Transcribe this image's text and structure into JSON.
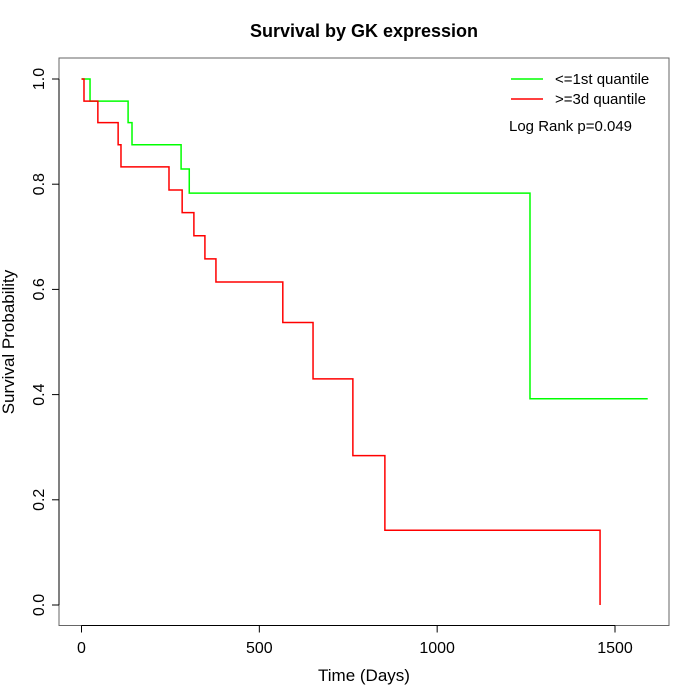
{
  "chart_data": {
    "type": "line",
    "subtype": "kaplan-meier step",
    "title": "Survival by GK expression",
    "xlabel": "Time (Days)",
    "ylabel": "Survival Probability",
    "xlim": [
      0,
      1650
    ],
    "ylim": [
      0,
      1.0
    ],
    "xticks": [
      0,
      500,
      1000,
      1500
    ],
    "xtick_labels": [
      "0",
      "500",
      "1000",
      "1500"
    ],
    "yticks": [
      0.0,
      0.2,
      0.4,
      0.6,
      0.8,
      1.0
    ],
    "ytick_labels": [
      "0.0",
      "0.2",
      "0.4",
      "0.6",
      "0.8",
      "1.0"
    ],
    "grid": false,
    "legend_position": "top-right",
    "annotation": "Log Rank p=0.049",
    "series": [
      {
        "name": "<=1st quantile",
        "color": "#00ff00",
        "x": [
          0,
          24,
          131,
          142,
          280,
          303,
          1261,
          1592
        ],
        "y": [
          1.0,
          0.958,
          0.917,
          0.875,
          0.829,
          0.783,
          0.392,
          0.392
        ]
      },
      {
        "name": ">=3d quantile",
        "color": "#ff0000",
        "x": [
          0,
          7,
          46,
          103,
          111,
          246,
          283,
          316,
          347,
          378,
          566,
          651,
          763,
          853,
          1458
        ],
        "y": [
          1.0,
          0.958,
          0.917,
          0.875,
          0.833,
          0.789,
          0.746,
          0.702,
          0.658,
          0.614,
          0.537,
          0.43,
          0.284,
          0.142,
          0.0
        ]
      }
    ]
  }
}
